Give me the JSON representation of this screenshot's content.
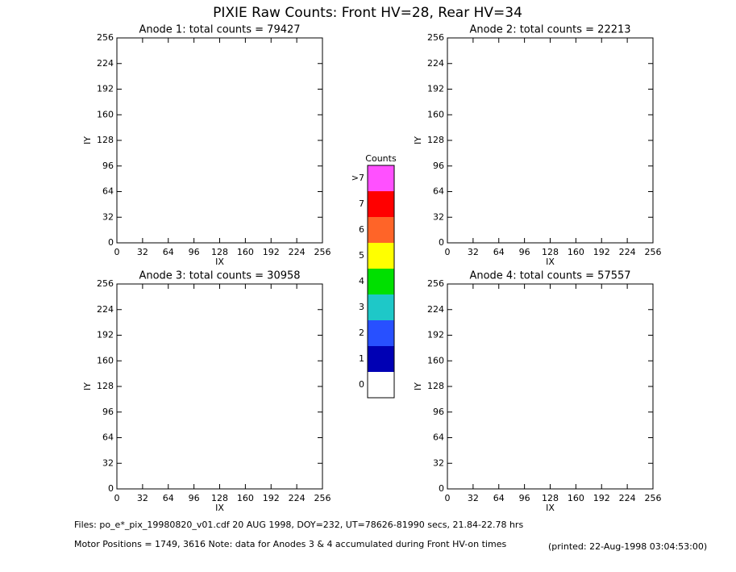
{
  "title": "PIXIE Raw Counts:  Front HV=28, Rear HV=34",
  "chart_data": [
    {
      "type": "heatmap",
      "title": "Anode 1: total counts = 79427",
      "xlabel": "IX",
      "ylabel": "IY",
      "xlim": [
        0,
        256
      ],
      "ylim": [
        0,
        256
      ],
      "xticks": [
        0,
        32,
        64,
        96,
        128,
        160,
        192,
        224,
        256
      ],
      "yticks": [
        0,
        32,
        64,
        96,
        128,
        160,
        192,
        224,
        256
      ]
    },
    {
      "type": "heatmap",
      "title": "Anode 2: total counts = 22213",
      "xlabel": "IX",
      "ylabel": "IY",
      "xlim": [
        0,
        256
      ],
      "ylim": [
        0,
        256
      ],
      "xticks": [
        0,
        32,
        64,
        96,
        128,
        160,
        192,
        224,
        256
      ],
      "yticks": [
        0,
        32,
        64,
        96,
        128,
        160,
        192,
        224,
        256
      ]
    },
    {
      "type": "heatmap",
      "title": "Anode 3: total counts = 30958",
      "xlabel": "IX",
      "ylabel": "IY",
      "xlim": [
        0,
        256
      ],
      "ylim": [
        0,
        256
      ],
      "xticks": [
        0,
        32,
        64,
        96,
        128,
        160,
        192,
        224,
        256
      ],
      "yticks": [
        0,
        32,
        64,
        96,
        128,
        160,
        192,
        224,
        256
      ]
    },
    {
      "type": "heatmap",
      "title": "Anode 4: total counts = 57557",
      "xlabel": "IX",
      "ylabel": "IY",
      "xlim": [
        0,
        256
      ],
      "ylim": [
        0,
        256
      ],
      "xticks": [
        0,
        32,
        64,
        96,
        128,
        160,
        192,
        224,
        256
      ],
      "yticks": [
        0,
        32,
        64,
        96,
        128,
        160,
        192,
        224,
        256
      ]
    },
    {
      "type": "colorbar",
      "title": "Counts",
      "categories": [
        "0",
        "1",
        "2",
        "3",
        "4",
        "5",
        "6",
        "7",
        ">7"
      ],
      "colors": [
        "#ffffff",
        "#0000b4",
        "#2850ff",
        "#1ec8c8",
        "#00e000",
        "#ffff00",
        "#ff6428",
        "#ff0000",
        "#ff50ff"
      ]
    }
  ],
  "footer": {
    "files": "Files: po_e*_pix_19980820_v01.cdf    20 AUG 1998, DOY=232, UT=78626-81990 secs, 21.84-22.78 hrs",
    "motor": "Motor Positions = 1749, 3616    Note: data for Anodes 3 & 4 accumulated during Front HV-on times",
    "printed": "(printed: 22-Aug-1998 03:04:53:00)"
  }
}
